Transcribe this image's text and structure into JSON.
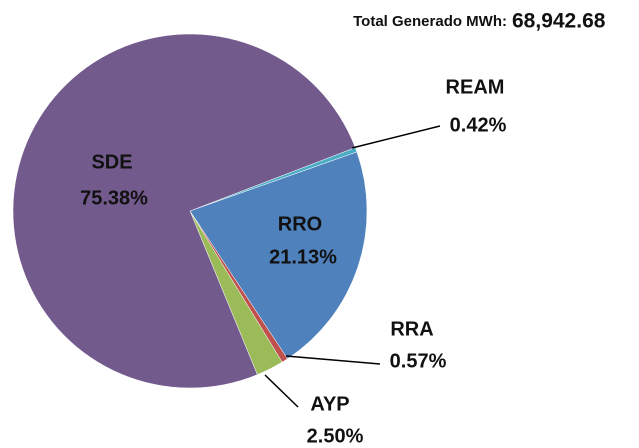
{
  "chart_data": {
    "type": "pie",
    "title": "Total Generado MWh:",
    "subtitle": "68,942.68",
    "categories": [
      "REAM",
      "RRO",
      "RRA",
      "AYP",
      "SDE"
    ],
    "values": [
      0.42,
      21.13,
      0.57,
      2.5,
      75.38
    ],
    "value_labels": [
      "0.42%",
      "21.13%",
      "0.57%",
      "2.50%",
      "75.38%"
    ],
    "colors": [
      "#4bacc6",
      "#4f81bd",
      "#c0504d",
      "#9bbb59",
      "#725a8c"
    ]
  }
}
